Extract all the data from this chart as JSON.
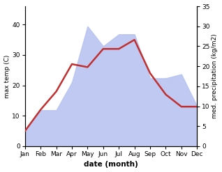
{
  "months": [
    "Jan",
    "Feb",
    "Mar",
    "Apr",
    "May",
    "Jun",
    "Jul",
    "Aug",
    "Sep",
    "Oct",
    "Nov",
    "Dec"
  ],
  "max_temp": [
    5,
    12,
    18,
    27,
    26,
    32,
    32,
    35,
    24,
    17,
    13,
    13
  ],
  "precipitation": [
    4,
    9,
    9,
    16,
    30,
    25,
    28,
    28,
    17,
    17,
    18,
    10
  ],
  "temp_color": "#c03030",
  "precip_color": "#b8c4f0",
  "xlabel": "date (month)",
  "ylabel_left": "max temp (C)",
  "ylabel_right": "med. precipitation (kg/m2)",
  "ylim_left": [
    0,
    46
  ],
  "ylim_right": [
    0,
    35
  ],
  "yticks_left": [
    0,
    10,
    20,
    30,
    40
  ],
  "yticks_right": [
    0,
    5,
    10,
    15,
    20,
    25,
    30,
    35
  ],
  "background_color": "#ffffff",
  "line_width": 1.8
}
